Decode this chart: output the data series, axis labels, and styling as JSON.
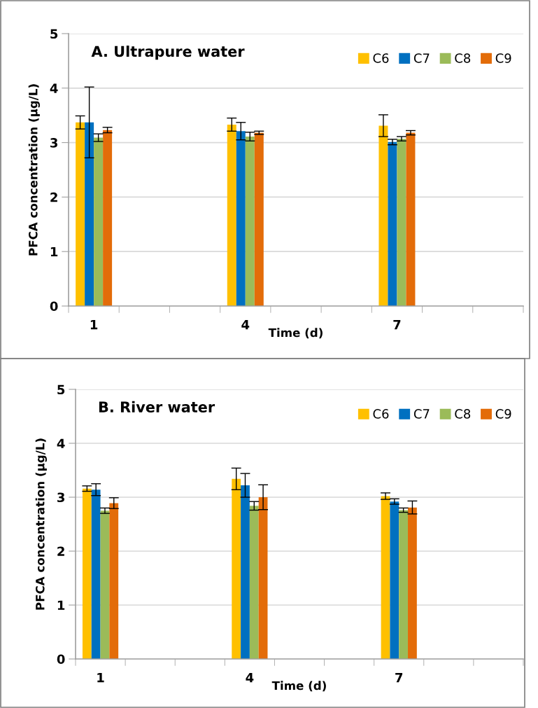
{
  "chart_data": [
    {
      "type": "bar",
      "title": "A. Ultrapure water",
      "xlabel": "Time (d)",
      "ylabel": "PFCA concentration (µg/L)",
      "categories": [
        "1",
        null,
        null,
        "4",
        null,
        null,
        "7",
        null,
        null
      ],
      "series": [
        {
          "name": "C6",
          "color": "#ffc000",
          "values": [
            3.37,
            null,
            null,
            3.33,
            null,
            null,
            3.31,
            null,
            null
          ],
          "errors": [
            0.12,
            null,
            null,
            0.12,
            null,
            null,
            0.2,
            null,
            null
          ]
        },
        {
          "name": "C7",
          "color": "#0070c0",
          "values": [
            3.37,
            null,
            null,
            3.21,
            null,
            null,
            3.01,
            null,
            null
          ],
          "errors": [
            0.65,
            null,
            null,
            0.16,
            null,
            null,
            0.05,
            null,
            null
          ]
        },
        {
          "name": "C8",
          "color": "#9bbb59",
          "values": [
            3.09,
            null,
            null,
            3.11,
            null,
            null,
            3.07,
            null,
            null
          ],
          "errors": [
            0.07,
            null,
            null,
            0.08,
            null,
            null,
            0.04,
            null,
            null
          ]
        },
        {
          "name": "C9",
          "color": "#e36c09",
          "values": [
            3.23,
            null,
            null,
            3.18,
            null,
            null,
            3.18,
            null,
            null
          ],
          "errors": [
            0.05,
            null,
            null,
            0.03,
            null,
            null,
            0.04,
            null,
            null
          ]
        }
      ],
      "ylim": [
        0,
        5
      ],
      "yticks": [
        0,
        1,
        2,
        3,
        4,
        5
      ],
      "grid": "y",
      "legend": "top right"
    },
    {
      "type": "bar",
      "title": "B. River water",
      "xlabel": "Time (d)",
      "ylabel": "PFCA concentration (µg/L)",
      "categories": [
        "1",
        null,
        null,
        "4",
        null,
        null,
        "7",
        null,
        null
      ],
      "series": [
        {
          "name": "C6",
          "color": "#ffc000",
          "values": [
            3.16,
            null,
            null,
            3.34,
            null,
            null,
            3.02,
            null,
            null
          ],
          "errors": [
            0.05,
            null,
            null,
            0.2,
            null,
            null,
            0.06,
            null,
            null
          ]
        },
        {
          "name": "C7",
          "color": "#0070c0",
          "values": [
            3.14,
            null,
            null,
            3.22,
            null,
            null,
            2.92,
            null,
            null
          ],
          "errors": [
            0.11,
            null,
            null,
            0.22,
            null,
            null,
            0.05,
            null,
            null
          ]
        },
        {
          "name": "C8",
          "color": "#9bbb59",
          "values": [
            2.75,
            null,
            null,
            2.84,
            null,
            null,
            2.76,
            null,
            null
          ],
          "errors": [
            0.05,
            null,
            null,
            0.08,
            null,
            null,
            0.04,
            null,
            null
          ]
        },
        {
          "name": "C9",
          "color": "#e36c09",
          "values": [
            2.89,
            null,
            null,
            3.0,
            null,
            null,
            2.81,
            null,
            null
          ],
          "errors": [
            0.1,
            null,
            null,
            0.23,
            null,
            null,
            0.12,
            null,
            null
          ]
        }
      ],
      "ylim": [
        0,
        5
      ],
      "yticks": [
        0,
        1,
        2,
        3,
        4,
        5
      ],
      "grid": "y",
      "legend": "top right"
    }
  ]
}
